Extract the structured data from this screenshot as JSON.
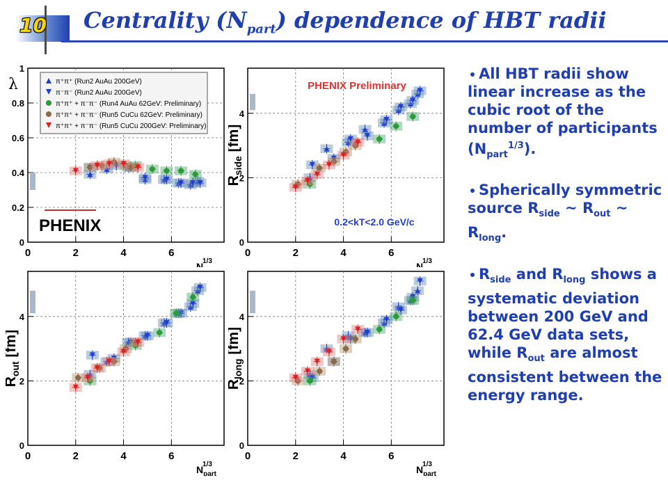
{
  "slide": {
    "number": "10",
    "title_pre": "Centrality (N",
    "title_sub": "part",
    "title_post": ") dependence of HBT radii"
  },
  "bullets": [
    {
      "t1": "All HBT radii show linear increase as the cubic root of the number of participants (N",
      "sub": "part",
      "sup": "1/3",
      "t2": ")."
    },
    {
      "t1": "Spherically symmetric source R",
      "s1": "side",
      "t2": " ~ R",
      "s2": "out",
      "t3": " ~ R",
      "s3": "long",
      "t4": "."
    },
    {
      "t1": "R",
      "s1": "side",
      "t2": " and R",
      "s2": "long",
      "t3": " shows a systematic deviation between 200 GeV and 62.4 GeV data sets, while R",
      "s3": "out",
      "t4": " are almost consistent between the energy range."
    }
  ],
  "annotations": {
    "preliminary": "PHENIX Preliminary",
    "kt_range": "0.2<kT<2.0 GeV/c",
    "logo": "PHENIX"
  },
  "legend": [
    {
      "label": "π⁺π⁺ (Run2 AuAu 200GeV)",
      "color": "#1f3fd0",
      "marker": "triangle-up"
    },
    {
      "label": "π⁻π⁻ (Run2 AuAu 200GeV)",
      "color": "#1f3fd0",
      "marker": "triangle-down"
    },
    {
      "label": "π⁺π⁺ + π⁻π⁻ (Run4 AuAu 62GeV: Preliminary)",
      "color": "#2a9a3a",
      "marker": "circle"
    },
    {
      "label": "π⁺π⁺ + π⁻π⁻ (Run5 CuCu 62GeV: Preliminary)",
      "color": "#8a6a4a",
      "marker": "circle"
    },
    {
      "label": "π⁺π⁺ + π⁻π⁻ (Run5 CuCu 200GeV: Preliminary)",
      "color": "#e02020",
      "marker": "triangle-down"
    }
  ],
  "chart_data": [
    {
      "type": "scatter",
      "ylabel": "λ",
      "xlabel": "N_part^1/3",
      "xlim": [
        0,
        8.2
      ],
      "ylim": [
        0,
        1.0
      ],
      "xticks": [
        "0",
        "2",
        "4",
        "6"
      ],
      "yticks": [
        "0",
        "0.2",
        "0.4",
        "0.6",
        "0.8",
        "1"
      ],
      "series": [
        {
          "color": "#1f3fd0",
          "x": [
            2.6,
            3.3,
            4.2,
            4.9,
            5.7,
            6.3,
            6.8,
            7.1
          ],
          "y": [
            0.39,
            0.42,
            0.43,
            0.36,
            0.36,
            0.34,
            0.33,
            0.35
          ]
        },
        {
          "color": "#1f3fd0",
          "x": [
            2.6,
            3.7,
            4.3,
            4.9,
            5.8,
            6.4,
            6.9,
            7.2
          ],
          "y": [
            0.43,
            0.44,
            0.43,
            0.37,
            0.36,
            0.34,
            0.34,
            0.34
          ]
        },
        {
          "color": "#2a9a3a",
          "x": [
            4.5,
            5.2,
            5.8,
            6.4,
            7.0
          ],
          "y": [
            0.44,
            0.42,
            0.41,
            0.41,
            0.39
          ]
        },
        {
          "color": "#8a6a4a",
          "x": [
            2.6,
            3.1,
            3.6,
            4.1,
            4.3
          ],
          "y": [
            0.43,
            0.44,
            0.46,
            0.44,
            0.43
          ]
        },
        {
          "color": "#e02020",
          "x": [
            2.0,
            2.9,
            3.4,
            4.0,
            4.6
          ],
          "y": [
            0.41,
            0.44,
            0.45,
            0.45,
            0.43
          ]
        }
      ]
    },
    {
      "type": "scatter",
      "ylabel": "Rside [fm]",
      "xlabel": "N_part^1/3",
      "xlim": [
        0,
        8.2
      ],
      "ylim": [
        0,
        5.4
      ],
      "xticks": [
        "0",
        "2",
        "4",
        "6"
      ],
      "yticks": [
        "0",
        "2",
        "4"
      ],
      "series": [
        {
          "color": "#1f3fd0",
          "x": [
            2.6,
            3.3,
            4.2,
            4.9,
            5.7,
            6.3,
            6.8,
            7.1
          ],
          "y": [
            2.0,
            2.9,
            3.1,
            3.5,
            3.7,
            4.1,
            4.3,
            4.6
          ]
        },
        {
          "color": "#1f3fd0",
          "x": [
            2.7,
            3.6,
            4.3,
            5.0,
            5.8,
            6.4,
            6.9,
            7.2
          ],
          "y": [
            2.4,
            2.6,
            3.2,
            3.3,
            3.8,
            4.2,
            4.4,
            4.7
          ]
        },
        {
          "color": "#2a9a3a",
          "x": [
            2.6,
            5.5,
            6.2,
            6.9
          ],
          "y": [
            1.8,
            3.2,
            3.6,
            3.9
          ]
        },
        {
          "color": "#8a6a4a",
          "x": [
            2.1,
            3.0,
            3.6,
            4.1,
            4.5
          ],
          "y": [
            1.8,
            2.3,
            2.5,
            2.8,
            3.0
          ]
        },
        {
          "color": "#e02020",
          "x": [
            2.0,
            2.5,
            2.9,
            3.4,
            4.0,
            4.6
          ],
          "y": [
            1.7,
            1.9,
            2.1,
            2.4,
            2.7,
            3.1
          ]
        }
      ]
    },
    {
      "type": "scatter",
      "ylabel": "Rout [fm]",
      "xlabel": "N_part^1/3",
      "xlim": [
        0,
        8.2
      ],
      "ylim": [
        0,
        5.4
      ],
      "xticks": [
        "0",
        "2",
        "4",
        "6"
      ],
      "yticks": [
        "0",
        "2",
        "4"
      ],
      "series": [
        {
          "color": "#1f3fd0",
          "x": [
            2.6,
            3.3,
            4.2,
            4.9,
            5.7,
            6.3,
            6.8,
            7.1
          ],
          "y": [
            2.2,
            2.6,
            3.2,
            3.4,
            3.8,
            4.1,
            4.3,
            4.8
          ]
        },
        {
          "color": "#1f3fd0",
          "x": [
            2.7,
            3.6,
            4.3,
            5.0,
            5.8,
            6.4,
            6.9,
            7.2
          ],
          "y": [
            2.8,
            2.7,
            3.2,
            3.4,
            3.8,
            4.1,
            4.4,
            4.9
          ]
        },
        {
          "color": "#2a9a3a",
          "x": [
            2.6,
            4.5,
            5.5,
            6.2,
            6.9
          ],
          "y": [
            2.0,
            3.1,
            3.5,
            4.1,
            4.6
          ]
        },
        {
          "color": "#8a6a4a",
          "x": [
            2.1,
            3.0,
            3.6,
            4.1,
            4.5
          ],
          "y": [
            2.1,
            2.4,
            2.6,
            3.0,
            3.2
          ]
        },
        {
          "color": "#e02020",
          "x": [
            2.0,
            2.5,
            2.9,
            3.4,
            4.0,
            4.6
          ],
          "y": [
            1.8,
            2.1,
            2.4,
            2.6,
            2.9,
            3.2
          ]
        }
      ]
    },
    {
      "type": "scatter",
      "ylabel": "Rlong [fm]",
      "xlabel": "N_part^1/3",
      "xlim": [
        0,
        8.2
      ],
      "ylim": [
        0,
        5.4
      ],
      "xticks": [
        "0",
        "2",
        "4",
        "6"
      ],
      "yticks": [
        "0",
        "2",
        "4"
      ],
      "series": [
        {
          "color": "#1f3fd0",
          "x": [
            2.6,
            3.3,
            4.2,
            4.9,
            5.7,
            6.3,
            6.8,
            7.1
          ],
          "y": [
            2.2,
            3.0,
            3.4,
            3.5,
            3.8,
            4.3,
            4.5,
            4.8
          ]
        },
        {
          "color": "#1f3fd0",
          "x": [
            2.7,
            3.6,
            4.3,
            5.0,
            5.8,
            6.4,
            6.9,
            7.2
          ],
          "y": [
            2.1,
            2.6,
            3.3,
            3.5,
            3.9,
            4.2,
            4.6,
            5.1
          ]
        },
        {
          "color": "#2a9a3a",
          "x": [
            2.6,
            5.5,
            6.2,
            6.9
          ],
          "y": [
            2.0,
            3.6,
            4.0,
            4.5
          ]
        },
        {
          "color": "#8a6a4a",
          "x": [
            2.1,
            3.0,
            3.6,
            4.1,
            4.5
          ],
          "y": [
            2.0,
            2.3,
            2.6,
            3.0,
            3.3
          ]
        },
        {
          "color": "#e02020",
          "x": [
            2.0,
            2.5,
            2.9,
            3.4,
            4.0,
            4.6
          ],
          "y": [
            2.1,
            2.3,
            2.6,
            2.9,
            3.3,
            3.6
          ]
        }
      ]
    }
  ]
}
